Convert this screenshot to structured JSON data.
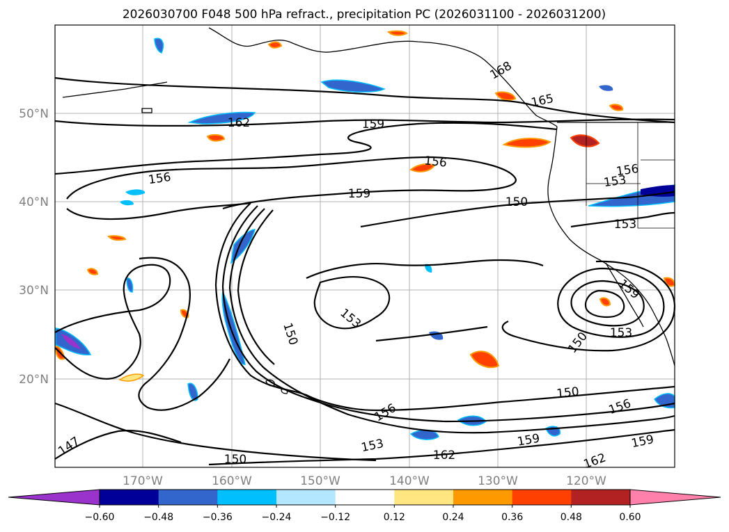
{
  "title": "2026030700 F048 500 hPa refract., precipitation PC (2026031100 - 2026031200)",
  "lat_labels": [
    "50°N",
    "40°N",
    "30°N",
    "20°N"
  ],
  "lon_labels": [
    "170°W",
    "160°W",
    "150°W",
    "140°W",
    "130°W",
    "120°W"
  ],
  "colorbar": {
    "ticks": [
      "−0.60",
      "−0.48",
      "−0.36",
      "−0.24",
      "−0.12",
      "0.12",
      "0.24",
      "0.36",
      "0.48",
      "0.60"
    ],
    "colors": [
      "#9933cc",
      "#000099",
      "#3366cc",
      "#00bfff",
      "#b3e6ff",
      "#ffffff",
      "#ffe680",
      "#ff9900",
      "#ff4000",
      "#b22222",
      "#ff80aa"
    ]
  },
  "contour_labels": [
    "162",
    "159",
    "165",
    "168",
    "156",
    "156",
    "159",
    "150",
    "156",
    "153",
    "153",
    "159",
    "150",
    "153",
    "150",
    "153",
    "150",
    "156",
    "156",
    "153",
    "159",
    "162",
    "150",
    "147",
    "159",
    "162"
  ]
}
